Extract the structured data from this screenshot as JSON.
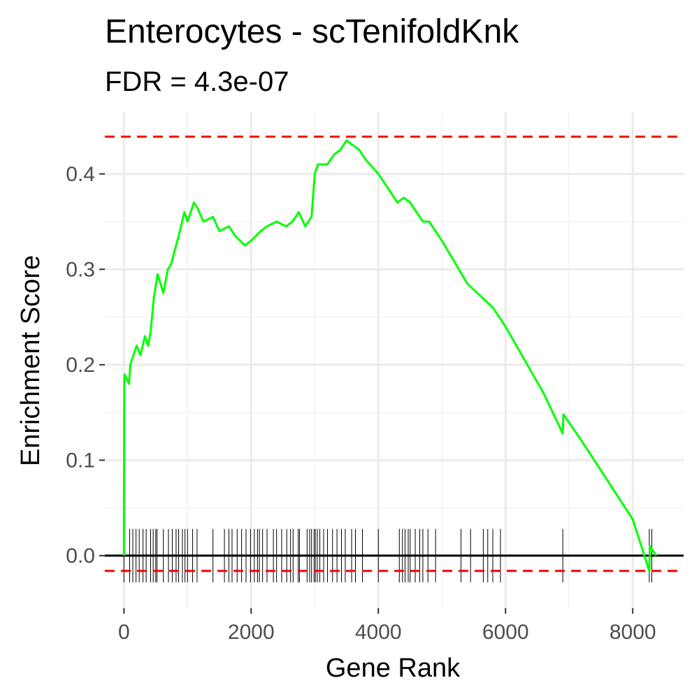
{
  "chart_data": {
    "type": "line",
    "title": "Enterocytes - scTenifoldKnk",
    "subtitle": "FDR = 4.3e-07",
    "xlabel": "Gene Rank",
    "ylabel": "Enrichment Score",
    "xlim": [
      -300,
      8800
    ],
    "ylim": [
      -0.055,
      0.465
    ],
    "x_ticks": [
      0,
      2000,
      4000,
      6000,
      8000
    ],
    "x_tick_labels": [
      "0",
      "2000",
      "4000",
      "6000",
      "8000"
    ],
    "y_ticks": [
      0.0,
      0.1,
      0.2,
      0.3,
      0.4
    ],
    "y_tick_labels": [
      "0.0",
      "0.1",
      "0.2",
      "0.3",
      "0.4"
    ],
    "grid": true,
    "max_es": 0.439,
    "min_es": -0.016,
    "line_color": "#00ff00",
    "threshold_color": "#ff0000",
    "series": [
      {
        "x": [
          0,
          5,
          10,
          80,
          100,
          150,
          200,
          260,
          330,
          380,
          420,
          470,
          530,
          620,
          690,
          740,
          800,
          880,
          950,
          1000,
          1100,
          1150,
          1250,
          1400,
          1500,
          1650,
          1750,
          1900,
          2000,
          2150,
          2250,
          2400,
          2550,
          2650,
          2750,
          2850,
          2950,
          3000,
          3050,
          3200,
          3300,
          3400,
          3500,
          3600,
          3700,
          3800,
          4000,
          4150,
          4300,
          4400,
          4500,
          4700,
          4800,
          5000,
          5400,
          5800,
          6000,
          6600,
          6900,
          6910,
          7200,
          8000,
          8260,
          8270,
          8370
        ],
        "y": [
          0.0,
          0.185,
          0.19,
          0.18,
          0.2,
          0.21,
          0.22,
          0.21,
          0.23,
          0.22,
          0.235,
          0.27,
          0.295,
          0.275,
          0.3,
          0.305,
          0.32,
          0.34,
          0.36,
          0.35,
          0.37,
          0.365,
          0.35,
          0.355,
          0.34,
          0.345,
          0.335,
          0.325,
          0.33,
          0.34,
          0.345,
          0.35,
          0.345,
          0.35,
          0.36,
          0.345,
          0.355,
          0.4,
          0.41,
          0.41,
          0.42,
          0.425,
          0.435,
          0.43,
          0.425,
          0.415,
          0.4,
          0.385,
          0.37,
          0.375,
          0.37,
          0.35,
          0.35,
          0.33,
          0.285,
          0.26,
          0.24,
          0.17,
          0.128,
          0.148,
          0.12,
          0.038,
          -0.016,
          0.01,
          0.0
        ]
      }
    ],
    "hits": [
      0,
      90,
      140,
      190,
      240,
      300,
      350,
      420,
      460,
      500,
      520,
      620,
      700,
      760,
      820,
      860,
      920,
      960,
      1000,
      1080,
      1150,
      1400,
      1580,
      1650,
      1700,
      1780,
      1850,
      1920,
      1990,
      2050,
      2100,
      2130,
      2180,
      2250,
      2350,
      2400,
      2480,
      2560,
      2620,
      2660,
      2740,
      2760,
      2880,
      2920,
      2950,
      2990,
      3010,
      3040,
      3080,
      3140,
      3200,
      3280,
      3350,
      3420,
      3480,
      3580,
      3640,
      3750,
      4000,
      4330,
      4380,
      4420,
      4470,
      4500,
      4580,
      4650,
      4700,
      4780,
      4900,
      5300,
      5450,
      5650,
      5720,
      5800,
      5920,
      6900,
      8260,
      8300
    ]
  }
}
